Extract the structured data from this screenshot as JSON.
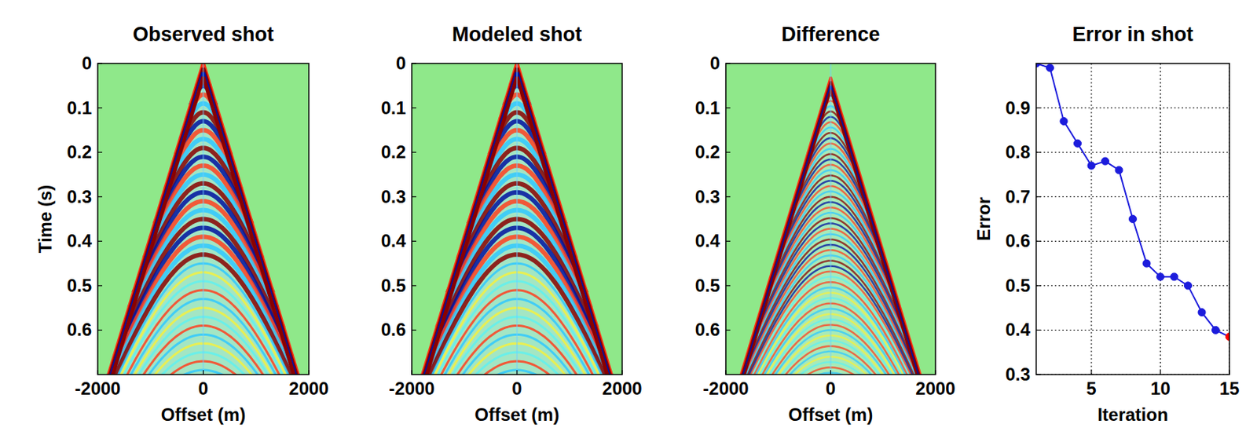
{
  "chart_data": [
    {
      "type": "image",
      "title": "Observed shot",
      "x_label": "Offset (m)",
      "y_label": "Time  (s)",
      "xlim": [
        -2000,
        2000
      ],
      "xticks": [
        -2000,
        0,
        2000
      ],
      "ylim": [
        0,
        0.7
      ],
      "yticks": [
        0,
        0.1,
        0.2,
        0.3,
        0.4,
        0.5,
        0.6
      ]
    },
    {
      "type": "image",
      "title": "Modeled shot",
      "x_label": "Offset (m)",
      "xlim": [
        -2000,
        2000
      ],
      "xticks": [
        -2000,
        0,
        2000
      ],
      "ylim": [
        0,
        0.7
      ],
      "yticks": [
        0,
        0.1,
        0.2,
        0.3,
        0.4,
        0.5,
        0.6
      ]
    },
    {
      "type": "image",
      "title": "Difference",
      "x_label": "Offset (m)",
      "xlim": [
        -2000,
        2000
      ],
      "xticks": [
        -2000,
        0,
        2000
      ],
      "ylim": [
        0,
        0.7
      ],
      "yticks": [
        0,
        0.1,
        0.2,
        0.3,
        0.4,
        0.5,
        0.6
      ]
    },
    {
      "type": "line",
      "title": "Error in shot",
      "x_label": "Iteration",
      "y_label": "Error",
      "x": [
        1,
        2,
        3,
        4,
        5,
        6,
        7,
        8,
        9,
        10,
        11,
        12,
        13,
        14,
        15
      ],
      "values": [
        1.0,
        0.99,
        0.87,
        0.82,
        0.77,
        0.78,
        0.76,
        0.65,
        0.55,
        0.52,
        0.52,
        0.5,
        0.44,
        0.4,
        0.385
      ],
      "color": "#1c1cdc",
      "colors": [
        "#1c1cdc",
        "#1c1cdc",
        "#1c1cdc",
        "#1c1cdc",
        "#1c1cdc",
        "#1c1cdc",
        "#1c1cdc",
        "#1c1cdc",
        "#1c1cdc",
        "#1c1cdc",
        "#1c1cdc",
        "#1c1cdc",
        "#1c1cdc",
        "#1c1cdc",
        "#ff0000"
      ],
      "marker": "circle",
      "grid": true,
      "xlim": [
        1,
        15
      ],
      "xticks": [
        5,
        10,
        15
      ],
      "ylim": [
        0.3,
        1
      ],
      "yticks": [
        0.3,
        0.4,
        0.5,
        0.6,
        0.7,
        0.8,
        0.9
      ]
    }
  ]
}
